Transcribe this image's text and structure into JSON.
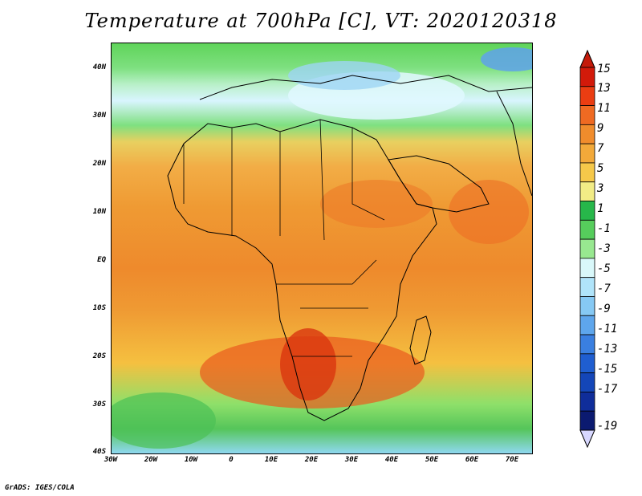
{
  "title": "Temperature at 700hPa [C], VT: 2020120318",
  "footer": "GrADS: IGES/COLA",
  "lat_labels": [
    "40N",
    "30N",
    "20N",
    "10N",
    "EQ",
    "10S",
    "20S",
    "30S",
    "40S"
  ],
  "lon_labels": [
    "30W",
    "20W",
    "10W",
    "0",
    "10E",
    "20E",
    "30E",
    "40E",
    "50E",
    "60E",
    "70E"
  ],
  "colorbar": {
    "labels": [
      "15",
      "13",
      "11",
      "9",
      "7",
      "5",
      "3",
      "1",
      "-1",
      "-3",
      "-5",
      "-7",
      "-9",
      "-11",
      "-13",
      "-15",
      "-17",
      "-19"
    ],
    "colors": [
      "#d21a0a",
      "#ea3d12",
      "#ef6a22",
      "#f08c2c",
      "#f2a93a",
      "#f5c84a",
      "#f2ec86",
      "#27b74a",
      "#56cd5c",
      "#98e890",
      "#d9f8fa",
      "#b0e4fa",
      "#86c9f4",
      "#5ea6ec",
      "#3a7fe0",
      "#1f5ed0",
      "#1446b8",
      "#0f2d9a",
      "#0b1a70"
    ],
    "top_arrow_color": "#c41a0a",
    "bottom_arrow_color": "#d8d8ff"
  }
}
